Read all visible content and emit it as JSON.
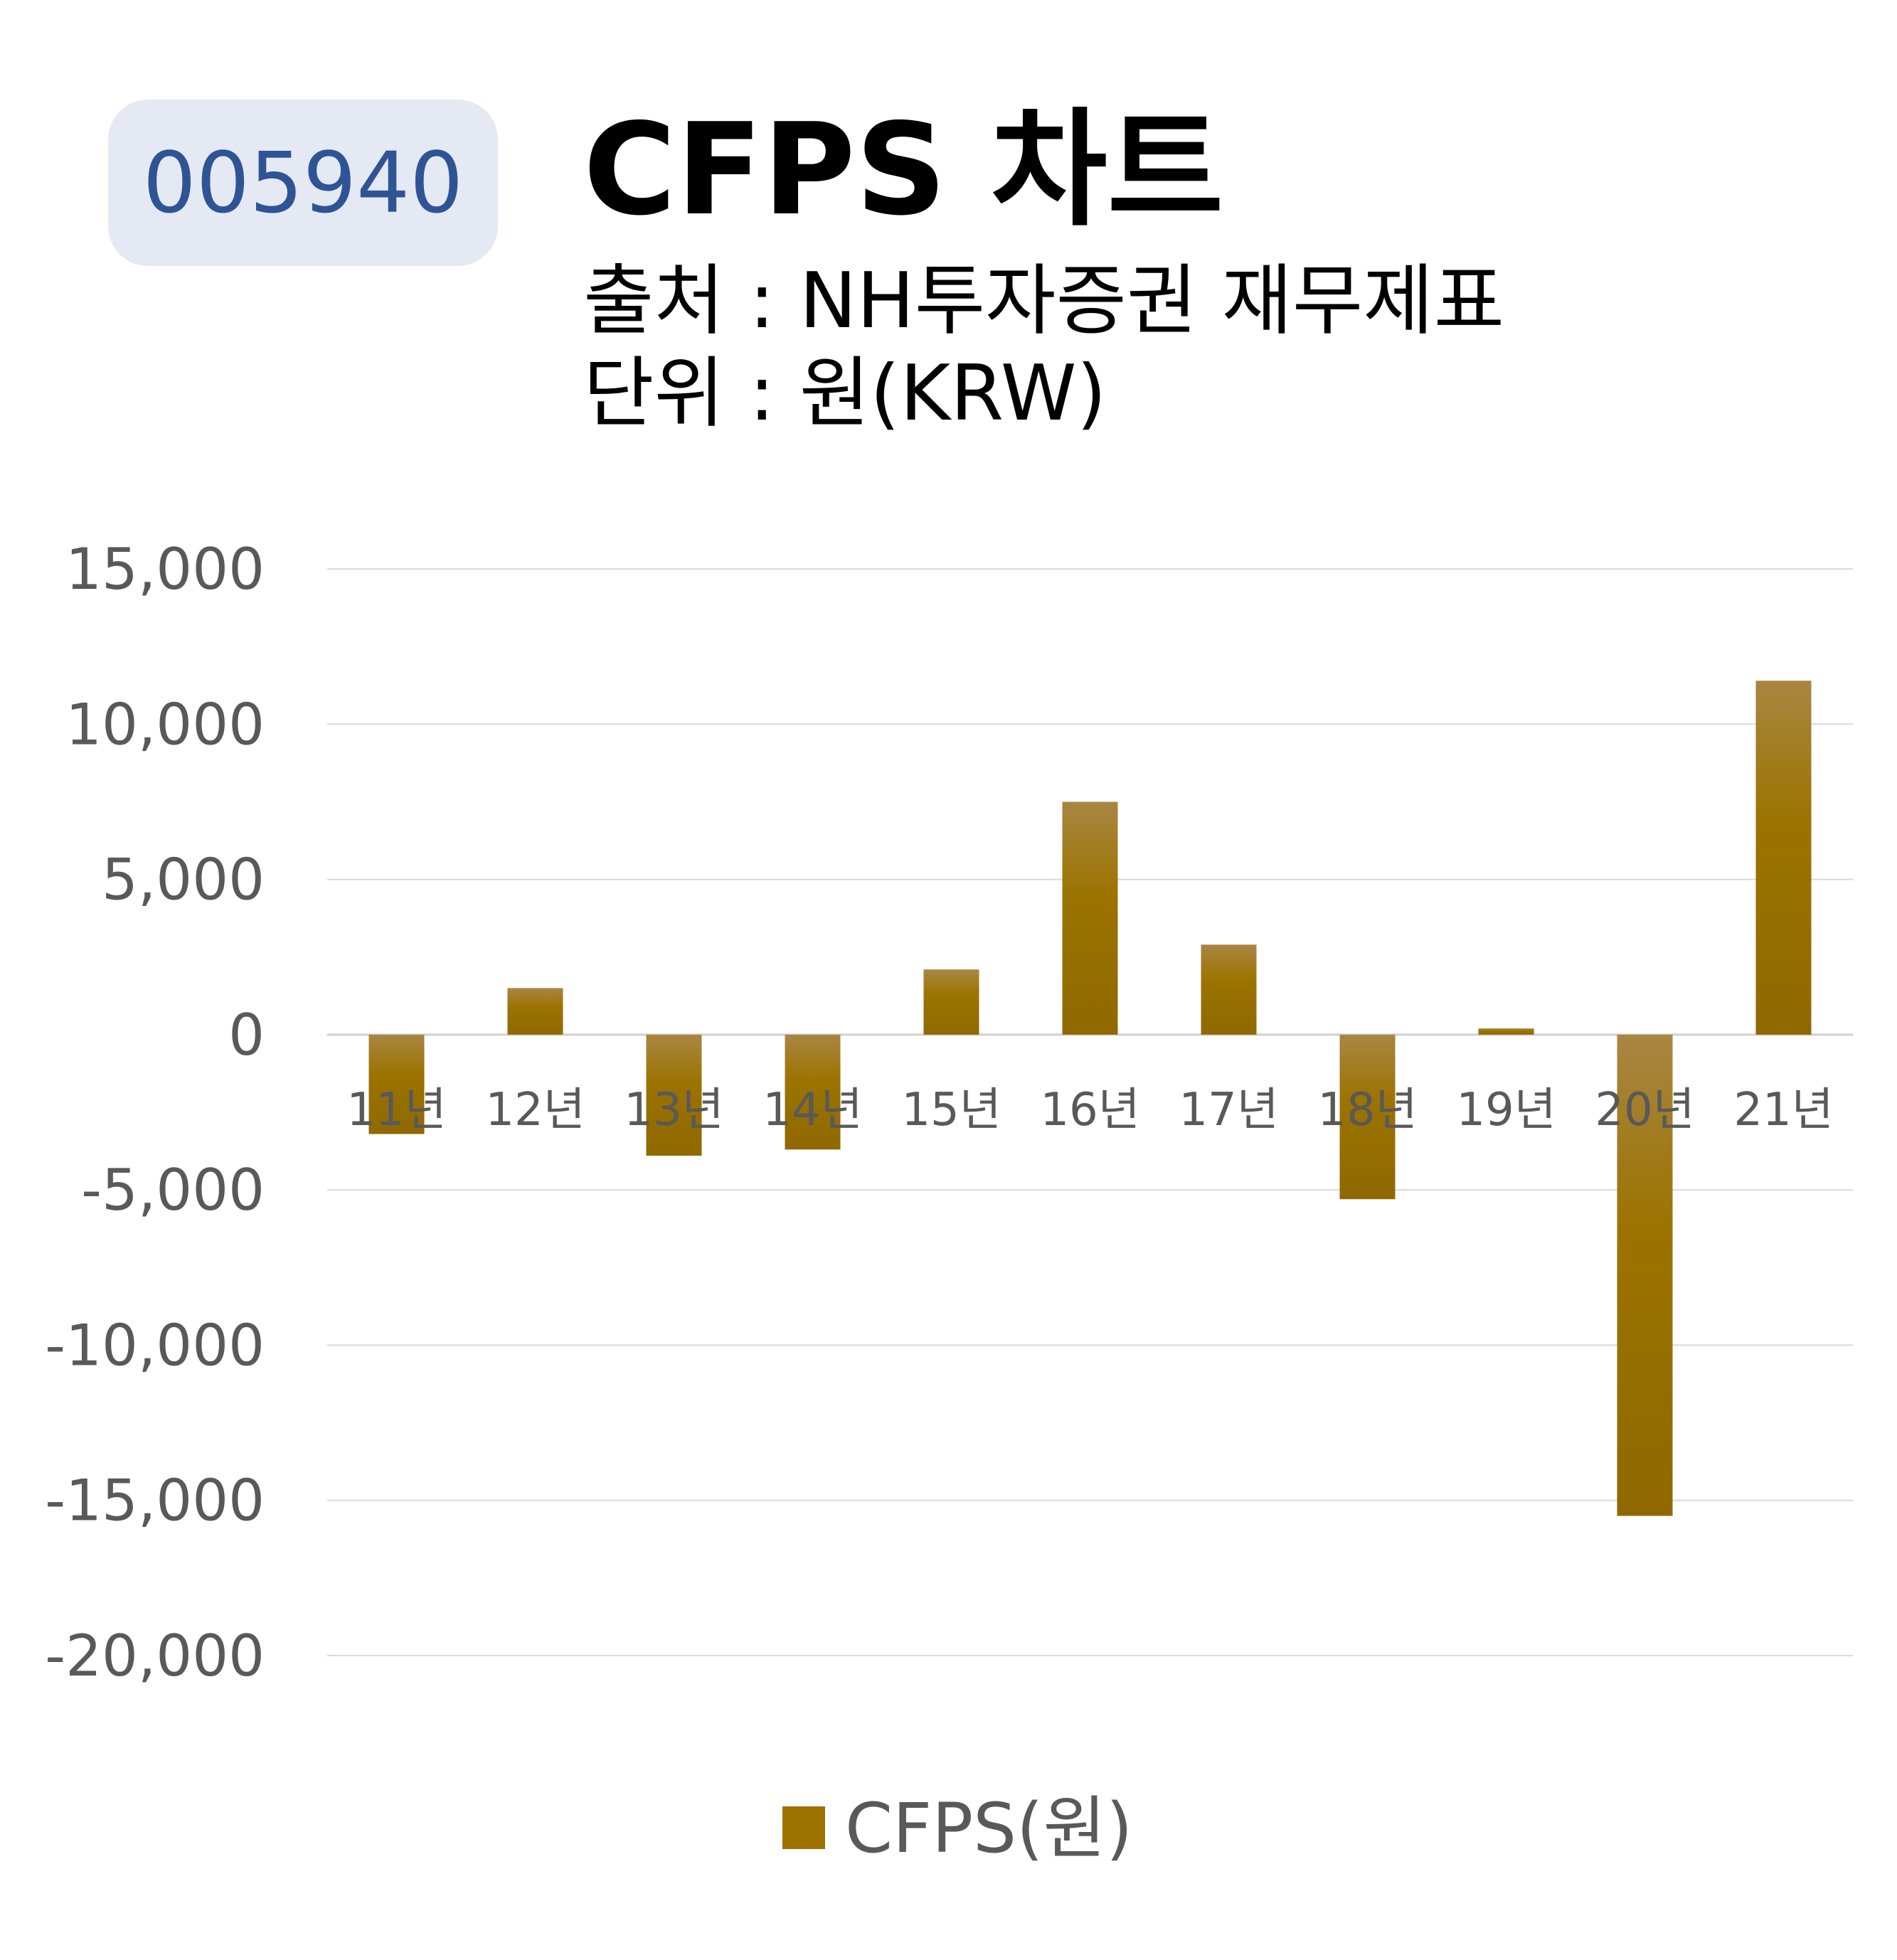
{
  "header": {
    "stock_code": "005940",
    "title": "CFPS 차트",
    "source_line": "출처 : NH투자증권 재무제표",
    "unit_line": "단위 : 원(KRW)"
  },
  "colors": {
    "bar": "#9c7200",
    "bar_light": "#b08a3e",
    "badge_bg": "#e4e9f4",
    "badge_text": "#2f5496",
    "grid": "#d9d9d9",
    "axis_text": "#595959"
  },
  "chart_data": {
    "type": "bar",
    "categories": [
      "11년",
      "12년",
      "13년",
      "14년",
      "15년",
      "16년",
      "17년",
      "18년",
      "19년",
      "20년",
      "21년"
    ],
    "series": [
      {
        "name": "CFPS(원)",
        "values": [
          -3200,
          1500,
          -3900,
          -3700,
          2100,
          7500,
          2900,
          -5300,
          200,
          -15500,
          11400
        ]
      }
    ],
    "y_ticks": [
      "15,000",
      "10,000",
      "5,000",
      "0",
      "-5,000",
      "-10,000",
      "-15,000",
      "-20,000"
    ],
    "ylim": [
      -20000,
      15000
    ],
    "grid": true,
    "legend_position": "bottom"
  }
}
